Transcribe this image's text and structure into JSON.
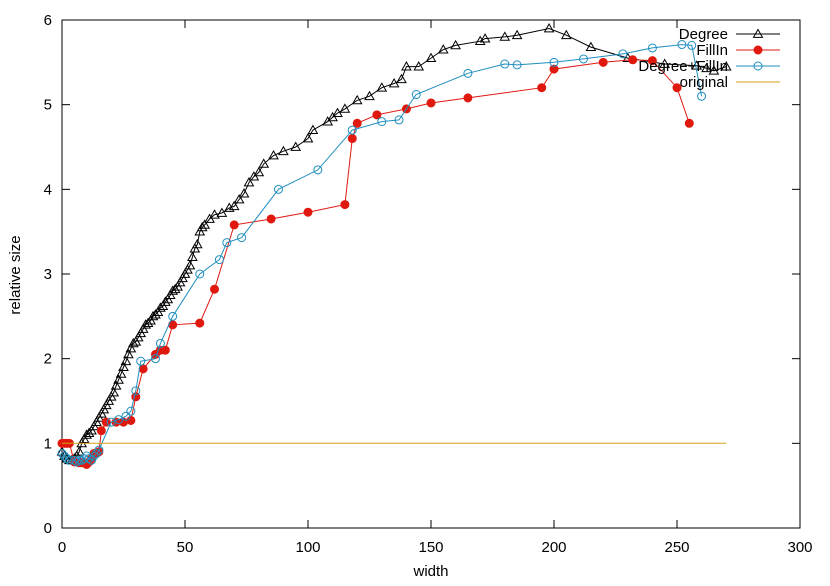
{
  "chart_data": {
    "type": "line",
    "xlabel": "width",
    "ylabel": "relative size",
    "xlim": [
      0,
      300
    ],
    "ylim": [
      0,
      6
    ],
    "xticks": [
      0,
      50,
      100,
      150,
      200,
      250,
      300
    ],
    "yticks": [
      0,
      1,
      2,
      3,
      4,
      5,
      6
    ],
    "grid": false,
    "legend_position": "top-right",
    "series": [
      {
        "name": "Degree",
        "color": "#000000",
        "marker": "open-triangle",
        "x": [
          0,
          1,
          2,
          3,
          4,
          5,
          6,
          7,
          8,
          9,
          10,
          11,
          12,
          13,
          14,
          15,
          16,
          17,
          18,
          19,
          20,
          21,
          22,
          23,
          24,
          25,
          26,
          27,
          28,
          29,
          30,
          31,
          32,
          33,
          34,
          35,
          36,
          37,
          38,
          39,
          40,
          41,
          42,
          43,
          44,
          45,
          46,
          47,
          48,
          49,
          50,
          51,
          52,
          53,
          54,
          55,
          56,
          57,
          58,
          60,
          62,
          65,
          68,
          70,
          72,
          74,
          76,
          78,
          80,
          82,
          86,
          90,
          95,
          100,
          102,
          108,
          110,
          112,
          115,
          120,
          125,
          130,
          135,
          138,
          140,
          145,
          150,
          155,
          160,
          170,
          172,
          180,
          185,
          198,
          205,
          215,
          230,
          245,
          258,
          262,
          265,
          270
        ],
        "y": [
          0.9,
          0.85,
          0.82,
          0.8,
          0.8,
          0.82,
          0.85,
          0.9,
          1.0,
          1.05,
          1.1,
          1.12,
          1.15,
          1.2,
          1.25,
          1.3,
          1.35,
          1.4,
          1.45,
          1.5,
          1.55,
          1.6,
          1.68,
          1.75,
          1.82,
          1.9,
          1.97,
          2.05,
          2.12,
          2.18,
          2.2,
          2.25,
          2.3,
          2.35,
          2.4,
          2.42,
          2.45,
          2.5,
          2.52,
          2.55,
          2.6,
          2.62,
          2.67,
          2.7,
          2.75,
          2.8,
          2.82,
          2.85,
          2.9,
          2.95,
          3.0,
          3.05,
          3.1,
          3.2,
          3.3,
          3.35,
          3.5,
          3.55,
          3.58,
          3.65,
          3.7,
          3.72,
          3.78,
          3.8,
          3.88,
          3.95,
          4.08,
          4.15,
          4.2,
          4.3,
          4.4,
          4.45,
          4.5,
          4.6,
          4.7,
          4.8,
          4.85,
          4.9,
          4.95,
          5.05,
          5.1,
          5.2,
          5.25,
          5.3,
          5.45,
          5.45,
          5.55,
          5.65,
          5.7,
          5.75,
          5.78,
          5.8,
          5.82,
          5.9,
          5.82,
          5.68,
          5.55,
          5.48,
          5.46,
          5.43,
          5.4,
          5.45
        ]
      },
      {
        "name": "FillIn",
        "color": "#e0190f",
        "marker": "filled-circle",
        "x": [
          0,
          1,
          2,
          3,
          5,
          7,
          8,
          10,
          11,
          12,
          13,
          14,
          15,
          16,
          18,
          22,
          25,
          28,
          30,
          33,
          38,
          40,
          42,
          45,
          56,
          62,
          70,
          85,
          100,
          115,
          118,
          120,
          128,
          140,
          150,
          165,
          195,
          200,
          220,
          232,
          240,
          250,
          255
        ],
        "y": [
          1.0,
          1.0,
          1.0,
          1.0,
          0.78,
          0.77,
          0.77,
          0.75,
          0.78,
          0.82,
          0.88,
          0.88,
          0.9,
          1.15,
          1.25,
          1.25,
          1.25,
          1.27,
          1.55,
          1.88,
          2.05,
          2.1,
          2.1,
          2.4,
          2.42,
          2.82,
          3.58,
          3.65,
          3.73,
          3.82,
          4.6,
          4.78,
          4.88,
          4.95,
          5.02,
          5.08,
          5.2,
          5.42,
          5.5,
          5.53,
          5.52,
          5.2,
          4.78
        ]
      },
      {
        "name": "Degree+FillIn",
        "color": "#1f8fbf",
        "marker": "open-circle",
        "x": [
          0,
          1,
          2,
          3,
          5,
          6,
          7,
          8,
          9,
          10,
          11,
          12,
          13,
          14,
          15,
          20,
          23,
          26,
          28,
          30,
          32,
          38,
          40,
          45,
          56,
          64,
          67,
          73,
          88,
          104,
          118,
          130,
          137,
          144,
          165,
          180,
          185,
          200,
          212,
          228,
          240,
          252,
          256,
          260
        ],
        "y": [
          0.88,
          0.85,
          0.82,
          0.8,
          0.8,
          0.78,
          0.8,
          0.8,
          0.82,
          0.85,
          0.82,
          0.8,
          0.85,
          0.88,
          0.92,
          1.25,
          1.28,
          1.32,
          1.38,
          1.62,
          1.97,
          2.0,
          2.18,
          2.5,
          3.0,
          3.17,
          3.37,
          3.43,
          4.0,
          4.23,
          4.7,
          4.8,
          4.82,
          5.12,
          5.37,
          5.48,
          5.47,
          5.5,
          5.54,
          5.6,
          5.67,
          5.71,
          5.7,
          5.1
        ]
      },
      {
        "name": "original",
        "color": "#d4a017",
        "marker": "none",
        "x": [
          0,
          270
        ],
        "y": [
          1.0,
          1.0
        ]
      }
    ]
  }
}
